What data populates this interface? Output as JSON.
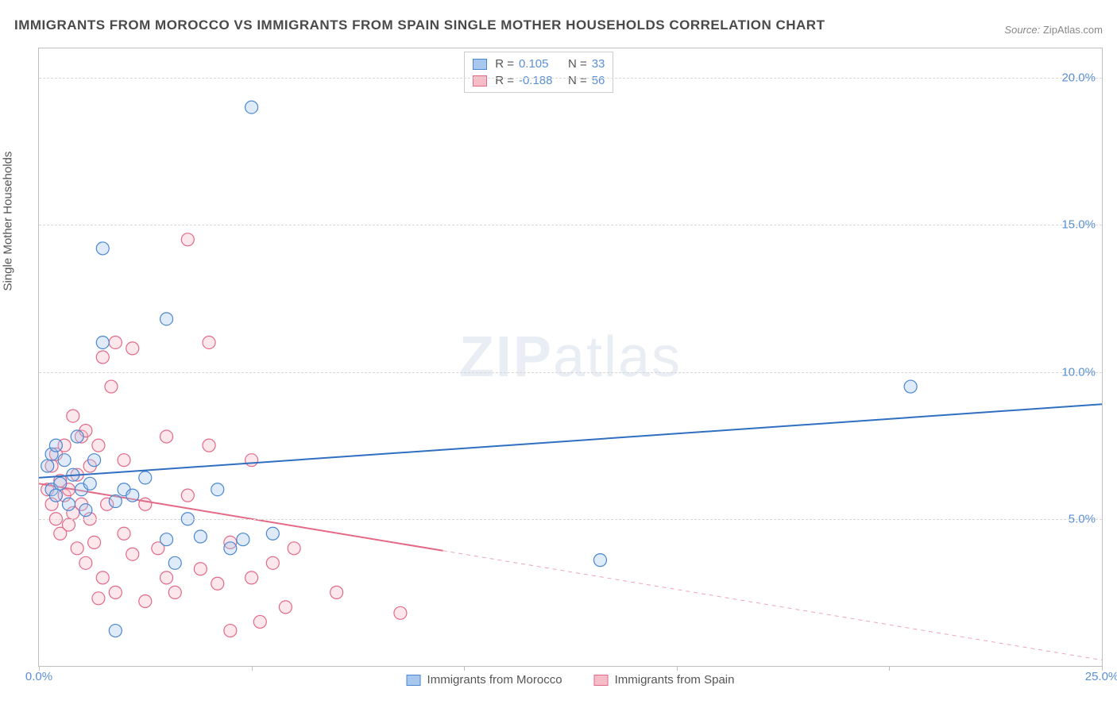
{
  "title": "IMMIGRANTS FROM MOROCCO VS IMMIGRANTS FROM SPAIN SINGLE MOTHER HOUSEHOLDS CORRELATION CHART",
  "source_label": "Source:",
  "source_value": "ZipAtlas.com",
  "y_axis_label": "Single Mother Households",
  "watermark_a": "ZIP",
  "watermark_b": "atlas",
  "chart": {
    "type": "scatter-with-regression",
    "background_color": "#ffffff",
    "grid_color": "#d8d8d8",
    "axis_color": "#bfbfbf",
    "tick_label_color": "#5a8fd6",
    "xlim": [
      0,
      25
    ],
    "ylim": [
      0,
      21
    ],
    "x_ticks": [
      0,
      5,
      10,
      15,
      20,
      25
    ],
    "x_tick_labels": [
      "0.0%",
      "",
      "",
      "",
      "",
      "25.0%"
    ],
    "y_ticks": [
      5,
      10,
      15,
      20
    ],
    "y_tick_labels": [
      "5.0%",
      "10.0%",
      "15.0%",
      "20.0%"
    ],
    "point_radius": 8,
    "line_width": 2
  },
  "series": {
    "morocco": {
      "label": "Immigrants from Morocco",
      "color_fill": "#a7c7ef",
      "color_stroke": "#4a87d0",
      "line_color": "#2f6fc0",
      "r_value": "0.105",
      "n_value": "33",
      "regression": {
        "x1": 0,
        "y1": 6.4,
        "x2": 25,
        "y2": 8.9
      },
      "regression_dash_after_x": 25,
      "points": [
        [
          0.2,
          6.8
        ],
        [
          0.3,
          7.2
        ],
        [
          0.3,
          6.0
        ],
        [
          0.4,
          7.5
        ],
        [
          0.4,
          5.8
        ],
        [
          0.5,
          6.2
        ],
        [
          0.6,
          7.0
        ],
        [
          0.7,
          5.5
        ],
        [
          0.8,
          6.5
        ],
        [
          0.9,
          7.8
        ],
        [
          1.0,
          6.0
        ],
        [
          1.1,
          5.3
        ],
        [
          1.2,
          6.2
        ],
        [
          1.3,
          7.0
        ],
        [
          1.5,
          14.2
        ],
        [
          1.5,
          11.0
        ],
        [
          1.8,
          5.6
        ],
        [
          2.0,
          6.0
        ],
        [
          2.2,
          5.8
        ],
        [
          2.5,
          6.4
        ],
        [
          3.0,
          4.3
        ],
        [
          3.0,
          11.8
        ],
        [
          3.2,
          3.5
        ],
        [
          3.5,
          5.0
        ],
        [
          3.8,
          4.4
        ],
        [
          4.2,
          6.0
        ],
        [
          4.5,
          4.0
        ],
        [
          4.8,
          4.3
        ],
        [
          5.0,
          19.0
        ],
        [
          5.5,
          4.5
        ],
        [
          13.2,
          3.6
        ],
        [
          20.5,
          9.5
        ],
        [
          1.8,
          1.2
        ]
      ]
    },
    "spain": {
      "label": "Immigrants from Spain",
      "color_fill": "#f6bcc8",
      "color_stroke": "#e26a87",
      "line_color": "#e26a87",
      "r_value": "-0.188",
      "n_value": "56",
      "regression": {
        "x1": 0,
        "y1": 6.2,
        "x2": 25,
        "y2": 0.2
      },
      "regression_dash_after_x": 9.5,
      "points": [
        [
          0.2,
          6.0
        ],
        [
          0.3,
          5.5
        ],
        [
          0.3,
          6.8
        ],
        [
          0.4,
          7.2
        ],
        [
          0.4,
          5.0
        ],
        [
          0.5,
          6.3
        ],
        [
          0.5,
          4.5
        ],
        [
          0.6,
          5.8
        ],
        [
          0.6,
          7.5
        ],
        [
          0.7,
          4.8
        ],
        [
          0.7,
          6.0
        ],
        [
          0.8,
          5.2
        ],
        [
          0.8,
          8.5
        ],
        [
          0.9,
          4.0
        ],
        [
          0.9,
          6.5
        ],
        [
          1.0,
          5.5
        ],
        [
          1.0,
          7.8
        ],
        [
          1.1,
          3.5
        ],
        [
          1.1,
          8.0
        ],
        [
          1.2,
          5.0
        ],
        [
          1.2,
          6.8
        ],
        [
          1.3,
          4.2
        ],
        [
          1.4,
          7.5
        ],
        [
          1.5,
          3.0
        ],
        [
          1.5,
          10.5
        ],
        [
          1.6,
          5.5
        ],
        [
          1.7,
          9.5
        ],
        [
          1.8,
          2.5
        ],
        [
          1.8,
          11.0
        ],
        [
          2.0,
          4.5
        ],
        [
          2.0,
          7.0
        ],
        [
          2.2,
          3.8
        ],
        [
          2.2,
          10.8
        ],
        [
          2.5,
          2.2
        ],
        [
          2.5,
          5.5
        ],
        [
          2.8,
          4.0
        ],
        [
          3.0,
          3.0
        ],
        [
          3.0,
          7.8
        ],
        [
          3.2,
          2.5
        ],
        [
          3.5,
          5.8
        ],
        [
          3.5,
          14.5
        ],
        [
          3.8,
          3.3
        ],
        [
          4.0,
          7.5
        ],
        [
          4.0,
          11.0
        ],
        [
          4.2,
          2.8
        ],
        [
          4.5,
          4.2
        ],
        [
          4.5,
          1.2
        ],
        [
          5.0,
          3.0
        ],
        [
          5.0,
          7.0
        ],
        [
          5.2,
          1.5
        ],
        [
          5.5,
          3.5
        ],
        [
          5.8,
          2.0
        ],
        [
          6.0,
          4.0
        ],
        [
          7.0,
          2.5
        ],
        [
          8.5,
          1.8
        ],
        [
          1.4,
          2.3
        ]
      ]
    }
  },
  "legend_stats": {
    "r_label": "R =",
    "n_label": "N ="
  }
}
